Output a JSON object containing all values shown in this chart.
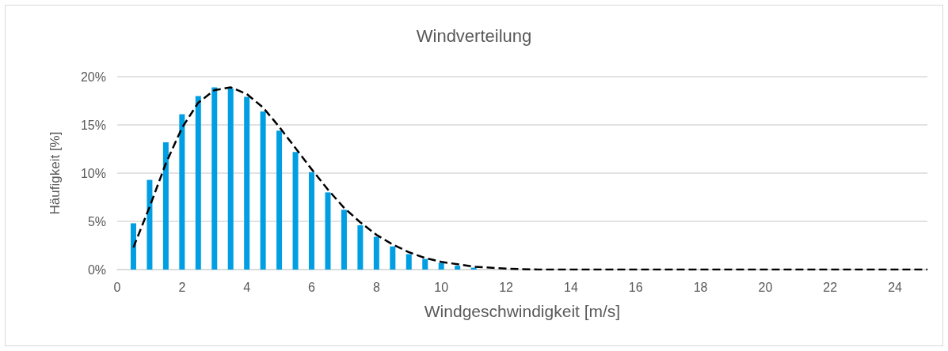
{
  "chart_data": {
    "type": "bar",
    "title": "Windverteilung",
    "xlabel": "Windgeschwindigkeit [m/s]",
    "ylabel": "Häufigkeit [%]",
    "xlim": [
      0,
      25
    ],
    "xticks": [
      0,
      2,
      4,
      6,
      8,
      10,
      12,
      14,
      16,
      18,
      20,
      22,
      24
    ],
    "ylim": [
      0,
      20
    ],
    "yticks": [
      {
        "value": 0,
        "label": "0%"
      },
      {
        "value": 5,
        "label": "5%"
      },
      {
        "value": 10,
        "label": "10%"
      },
      {
        "value": 15,
        "label": "15%"
      },
      {
        "value": 20,
        "label": "20%"
      }
    ],
    "grid": "y",
    "series": [
      {
        "color": "#009fe3",
        "x": [
          0.5,
          1,
          1.5,
          2,
          2.5,
          3,
          3.5,
          4,
          4.5,
          5,
          5.5,
          6,
          6.5,
          7,
          7.5,
          8,
          8.5,
          9,
          9.5,
          10,
          10.5,
          11
        ],
        "values": [
          4.8,
          9.3,
          13.2,
          16.1,
          18.0,
          18.9,
          18.8,
          17.9,
          16.4,
          14.4,
          12.2,
          10.1,
          8.0,
          6.2,
          4.6,
          3.4,
          2.4,
          1.6,
          1.1,
          0.7,
          0.4,
          0.2
        ]
      },
      {
        "type": "line",
        "color": "#000000",
        "line_style": "dashed",
        "marker": "none",
        "x": [
          0.5,
          1,
          1.5,
          2,
          2.5,
          3,
          3.5,
          4,
          4.5,
          5,
          5.5,
          6,
          6.5,
          7,
          7.5,
          8,
          8.5,
          9,
          9.5,
          10,
          11,
          12,
          13,
          14,
          25
        ],
        "values": [
          2.3,
          6.5,
          11.0,
          14.7,
          17.3,
          18.6,
          18.9,
          18.2,
          16.8,
          14.8,
          12.6,
          10.4,
          8.3,
          6.4,
          4.9,
          3.6,
          2.6,
          1.8,
          1.2,
          0.8,
          0.3,
          0.1,
          0,
          0,
          0
        ]
      }
    ]
  }
}
